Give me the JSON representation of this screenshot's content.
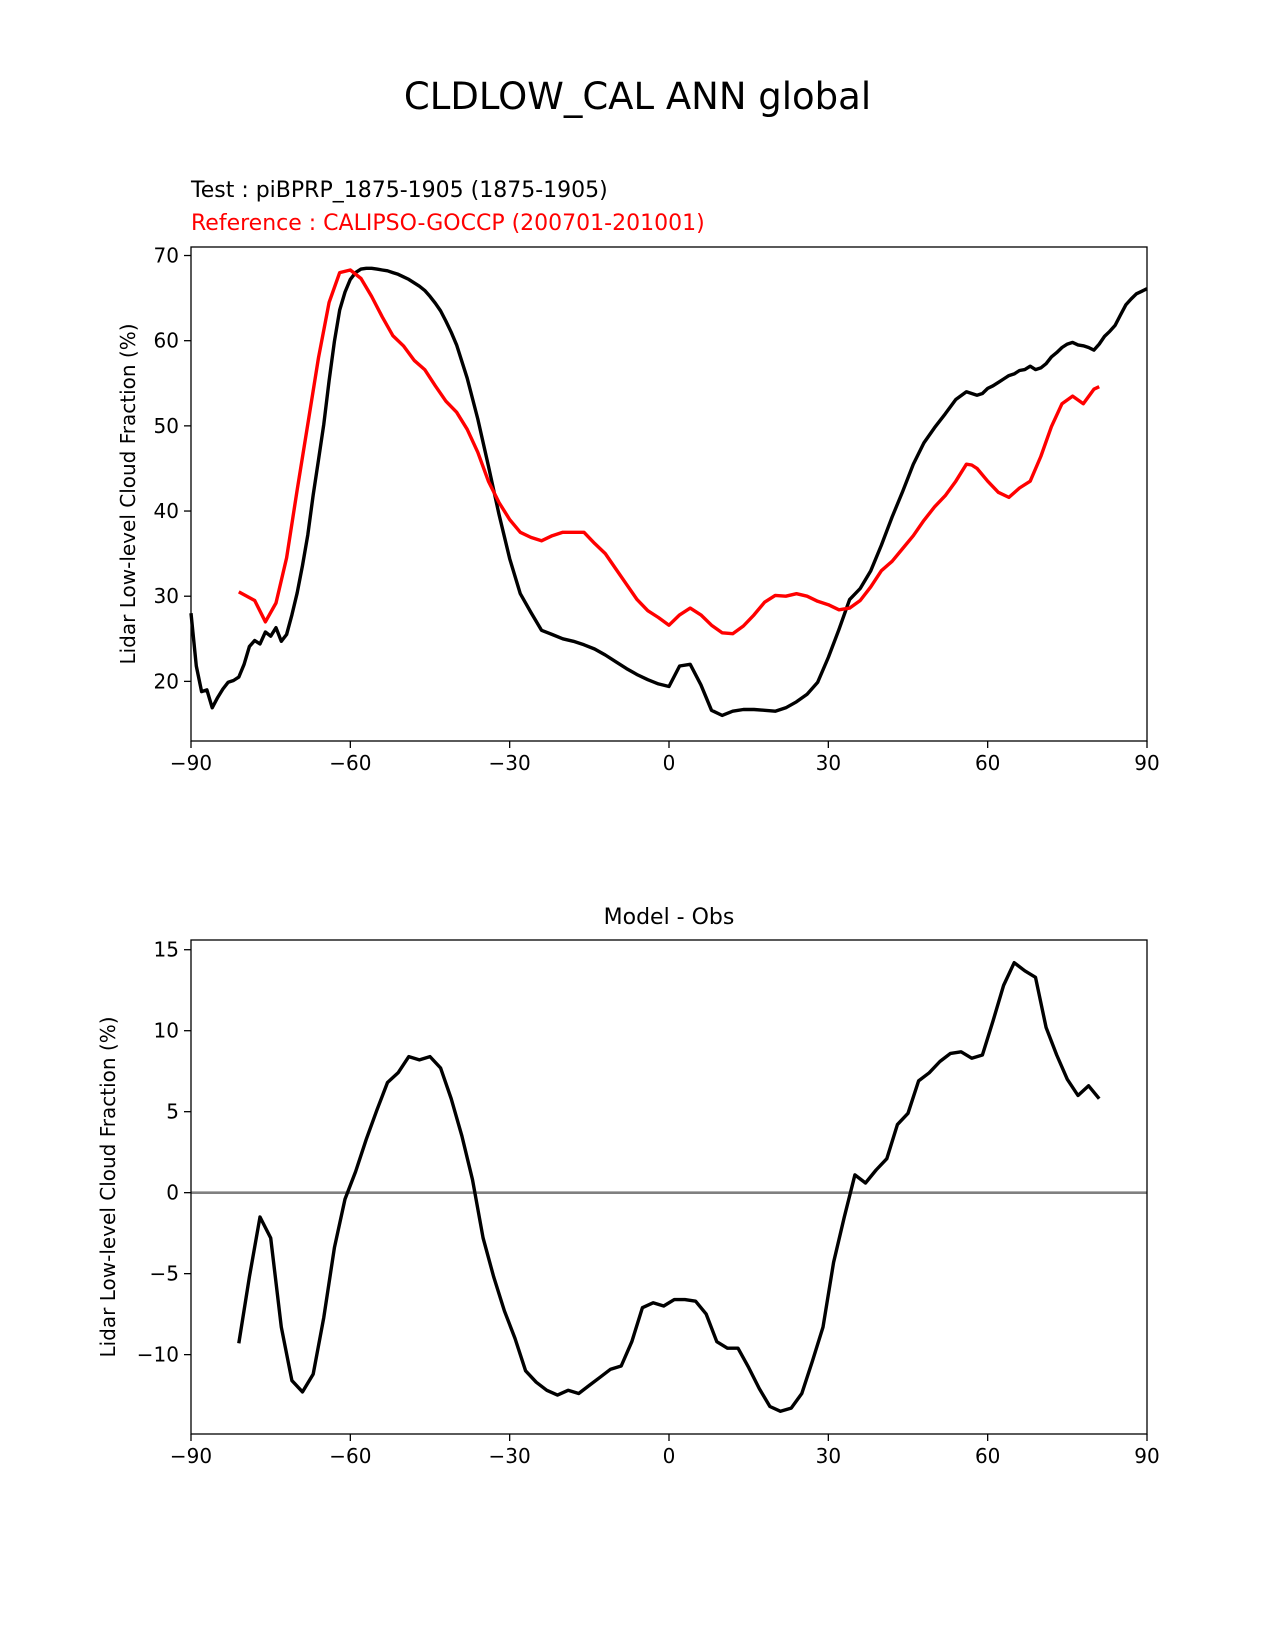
{
  "figure": {
    "suptitle": "CLDLOW_CAL ANN global"
  },
  "colors": {
    "test": "#000000",
    "reference": "#ff0000",
    "zero_line": "#808080",
    "axes": "#000000"
  },
  "chart_data": [
    {
      "type": "line",
      "title_test": "Test : piBPRP_1875-1905 (1875-1905)",
      "title_reference": "Reference : CALIPSO-GOCCP (200701-201001)",
      "xlabel": "",
      "ylabel": "Lidar Low-level Cloud Fraction (%)",
      "xlim": [
        -90,
        90
      ],
      "ylim": [
        13,
        71
      ],
      "xticks": [
        -90,
        -60,
        -30,
        0,
        30,
        60,
        90
      ],
      "xtick_labels": [
        "−90",
        "−60",
        "−30",
        "0",
        "30",
        "60",
        "90"
      ],
      "yticks": [
        20,
        30,
        40,
        50,
        60,
        70
      ],
      "ytick_labels": [
        "20",
        "30",
        "40",
        "50",
        "60",
        "70"
      ],
      "grid": false,
      "series": [
        {
          "name": "Test : piBPRP_1875-1905 (1875-1905)",
          "color": "#000000",
          "x": [
            -90,
            -89,
            -88,
            -87,
            -86,
            -85,
            -84,
            -83,
            -82,
            -81,
            -80,
            -79,
            -78,
            -77,
            -76,
            -75,
            -74,
            -73,
            -72,
            -71,
            -70,
            -69,
            -68,
            -67,
            -66,
            -65,
            -64,
            -63,
            -62,
            -61,
            -60,
            -59,
            -58,
            -57,
            -56,
            -55,
            -54,
            -53,
            -52,
            -51,
            -50,
            -49,
            -48,
            -47,
            -46,
            -45,
            -44,
            -43,
            -42,
            -41,
            -40,
            -38,
            -36,
            -34,
            -32,
            -30,
            -28,
            -26,
            -24,
            -22,
            -20,
            -18,
            -16,
            -14,
            -12,
            -10,
            -8,
            -6,
            -4,
            -2,
            0,
            2,
            4,
            6,
            8,
            10,
            12,
            14,
            16,
            18,
            20,
            22,
            24,
            26,
            28,
            30,
            32,
            34,
            36,
            38,
            40,
            42,
            44,
            46,
            48,
            50,
            52,
            54,
            56,
            57,
            58,
            59,
            60,
            61,
            62,
            63,
            64,
            65,
            66,
            67,
            68,
            69,
            70,
            71,
            72,
            73,
            74,
            75,
            76,
            77,
            78,
            79,
            80,
            81,
            82,
            83,
            84,
            85,
            86,
            87,
            88,
            89,
            90
          ],
          "y": [
            28.0,
            21.8,
            18.8,
            19.0,
            16.9,
            18.1,
            19.1,
            19.9,
            20.1,
            20.5,
            22.0,
            24.1,
            24.8,
            24.4,
            25.8,
            25.3,
            26.3,
            24.7,
            25.5,
            27.8,
            30.4,
            33.6,
            37.2,
            41.9,
            46.0,
            50.2,
            55.3,
            59.9,
            63.6,
            65.7,
            67.2,
            68.0,
            68.4,
            68.5,
            68.5,
            68.4,
            68.3,
            68.2,
            68.0,
            67.8,
            67.5,
            67.2,
            66.8,
            66.4,
            65.9,
            65.2,
            64.4,
            63.5,
            62.3,
            61.0,
            59.5,
            55.6,
            50.8,
            45.3,
            39.6,
            34.4,
            30.3,
            28.1,
            26.0,
            25.5,
            25.0,
            24.7,
            24.3,
            23.8,
            23.1,
            22.3,
            21.5,
            20.8,
            20.2,
            19.7,
            19.4,
            21.8,
            22.0,
            19.6,
            16.6,
            16.0,
            16.5,
            16.7,
            16.7,
            16.6,
            16.5,
            16.9,
            17.6,
            18.5,
            19.9,
            22.8,
            26.1,
            29.6,
            30.9,
            33.0,
            36.0,
            39.3,
            42.3,
            45.5,
            48.0,
            49.8,
            51.4,
            53.1,
            54.0,
            53.8,
            53.6,
            53.8,
            54.4,
            54.7,
            55.1,
            55.5,
            55.9,
            56.1,
            56.5,
            56.6,
            57.0,
            56.6,
            56.8,
            57.3,
            58.1,
            58.6,
            59.2,
            59.6,
            59.8,
            59.5,
            59.4,
            59.2,
            58.9,
            59.6,
            60.5,
            61.1,
            61.8,
            63.0,
            64.2,
            64.9,
            65.5,
            65.8,
            66.1
          ]
        },
        {
          "name": "Reference : CALIPSO-GOCCP (200701-201001)",
          "color": "#ff0000",
          "x": [
            -81,
            -78,
            -76,
            -74,
            -72,
            -70,
            -68,
            -66,
            -64,
            -62,
            -60,
            -58,
            -56,
            -54,
            -52,
            -50,
            -48,
            -46,
            -44,
            -42,
            -40,
            -38,
            -36,
            -34,
            -32,
            -30,
            -28,
            -26,
            -24,
            -22,
            -20,
            -18,
            -16,
            -14,
            -12,
            -10,
            -8,
            -6,
            -4,
            -2,
            0,
            2,
            4,
            6,
            8,
            10,
            12,
            14,
            16,
            18,
            20,
            22,
            24,
            26,
            28,
            30,
            32,
            34,
            36,
            38,
            40,
            42,
            44,
            46,
            48,
            50,
            52,
            54,
            56,
            57,
            58,
            60,
            62,
            64,
            66,
            68,
            70,
            72,
            74,
            76,
            78,
            80,
            81
          ],
          "y": [
            30.5,
            29.5,
            27.0,
            29.2,
            34.5,
            42.5,
            50.2,
            58.0,
            64.5,
            68.0,
            68.3,
            67.3,
            65.2,
            62.8,
            60.6,
            59.4,
            57.7,
            56.6,
            54.7,
            52.9,
            51.6,
            49.6,
            46.9,
            43.5,
            41.0,
            39.0,
            37.5,
            36.9,
            36.5,
            37.1,
            37.5,
            37.5,
            37.5,
            36.2,
            35.0,
            33.2,
            31.4,
            29.6,
            28.3,
            27.5,
            26.6,
            27.8,
            28.6,
            27.8,
            26.6,
            25.7,
            25.6,
            26.5,
            27.8,
            29.3,
            30.1,
            30.0,
            30.3,
            30.0,
            29.4,
            29.0,
            28.4,
            28.6,
            29.5,
            31.1,
            33.0,
            34.1,
            35.6,
            37.1,
            38.9,
            40.5,
            41.8,
            43.5,
            45.5,
            45.4,
            45.0,
            43.5,
            42.2,
            41.6,
            42.7,
            43.5,
            46.4,
            49.9,
            52.6,
            53.5,
            52.6,
            54.3,
            54.6
          ]
        }
      ]
    },
    {
      "type": "line",
      "title": "Model - Obs",
      "xlabel": "",
      "ylabel": "Lidar Low-level Cloud Fraction (%)",
      "xlim": [
        -90,
        90
      ],
      "ylim": [
        -14.9,
        15.6
      ],
      "xticks": [
        -90,
        -60,
        -30,
        0,
        30,
        60,
        90
      ],
      "xtick_labels": [
        "−90",
        "−60",
        "−30",
        "0",
        "30",
        "60",
        "90"
      ],
      "yticks": [
        -10,
        -5,
        0,
        5,
        10,
        15
      ],
      "ytick_labels": [
        "−10",
        "−5",
        "0",
        "5",
        "10",
        "15"
      ],
      "grid": false,
      "zero_line": 0,
      "series": [
        {
          "color": "#000000",
          "x": [
            -81,
            -79,
            -77,
            -75,
            -73,
            -71,
            -69,
            -67,
            -65,
            -63,
            -61,
            -59,
            -57,
            -55,
            -53,
            -51,
            -49,
            -47,
            -45,
            -43,
            -41,
            -39,
            -37,
            -35,
            -33,
            -31,
            -29,
            -27,
            -25,
            -23,
            -21,
            -19,
            -17,
            -15,
            -13,
            -11,
            -9,
            -7,
            -5,
            -3,
            -1,
            1,
            3,
            5,
            7,
            9,
            11,
            13,
            15,
            17,
            19,
            21,
            23,
            25,
            27,
            29,
            31,
            33,
            35,
            37,
            39,
            41,
            43,
            45,
            47,
            49,
            51,
            53,
            55,
            57,
            59,
            61,
            63,
            65,
            67,
            69,
            71,
            73,
            75,
            77,
            79,
            81
          ],
          "y": [
            -9.3,
            -5.2,
            -1.5,
            -2.8,
            -8.3,
            -11.6,
            -12.3,
            -11.2,
            -7.7,
            -3.4,
            -0.4,
            1.3,
            3.3,
            5.1,
            6.8,
            7.4,
            8.4,
            8.2,
            8.4,
            7.7,
            5.8,
            3.5,
            0.8,
            -2.8,
            -5.2,
            -7.3,
            -9.0,
            -11.0,
            -11.7,
            -12.2,
            -12.5,
            -12.2,
            -12.4,
            -11.9,
            -11.4,
            -10.9,
            -10.7,
            -9.2,
            -7.1,
            -6.8,
            -7.0,
            -6.6,
            -6.6,
            -6.7,
            -7.5,
            -9.2,
            -9.6,
            -9.6,
            -10.8,
            -12.1,
            -13.2,
            -13.5,
            -13.3,
            -12.4,
            -10.4,
            -8.3,
            -4.3,
            -1.5,
            1.1,
            0.6,
            1.4,
            2.1,
            4.2,
            4.9,
            6.9,
            7.4,
            8.1,
            8.6,
            8.7,
            8.3,
            8.5,
            10.6,
            12.8,
            14.2,
            13.7,
            13.3,
            10.2,
            8.5,
            7.0,
            6.0,
            6.6,
            5.8
          ]
        }
      ]
    }
  ]
}
